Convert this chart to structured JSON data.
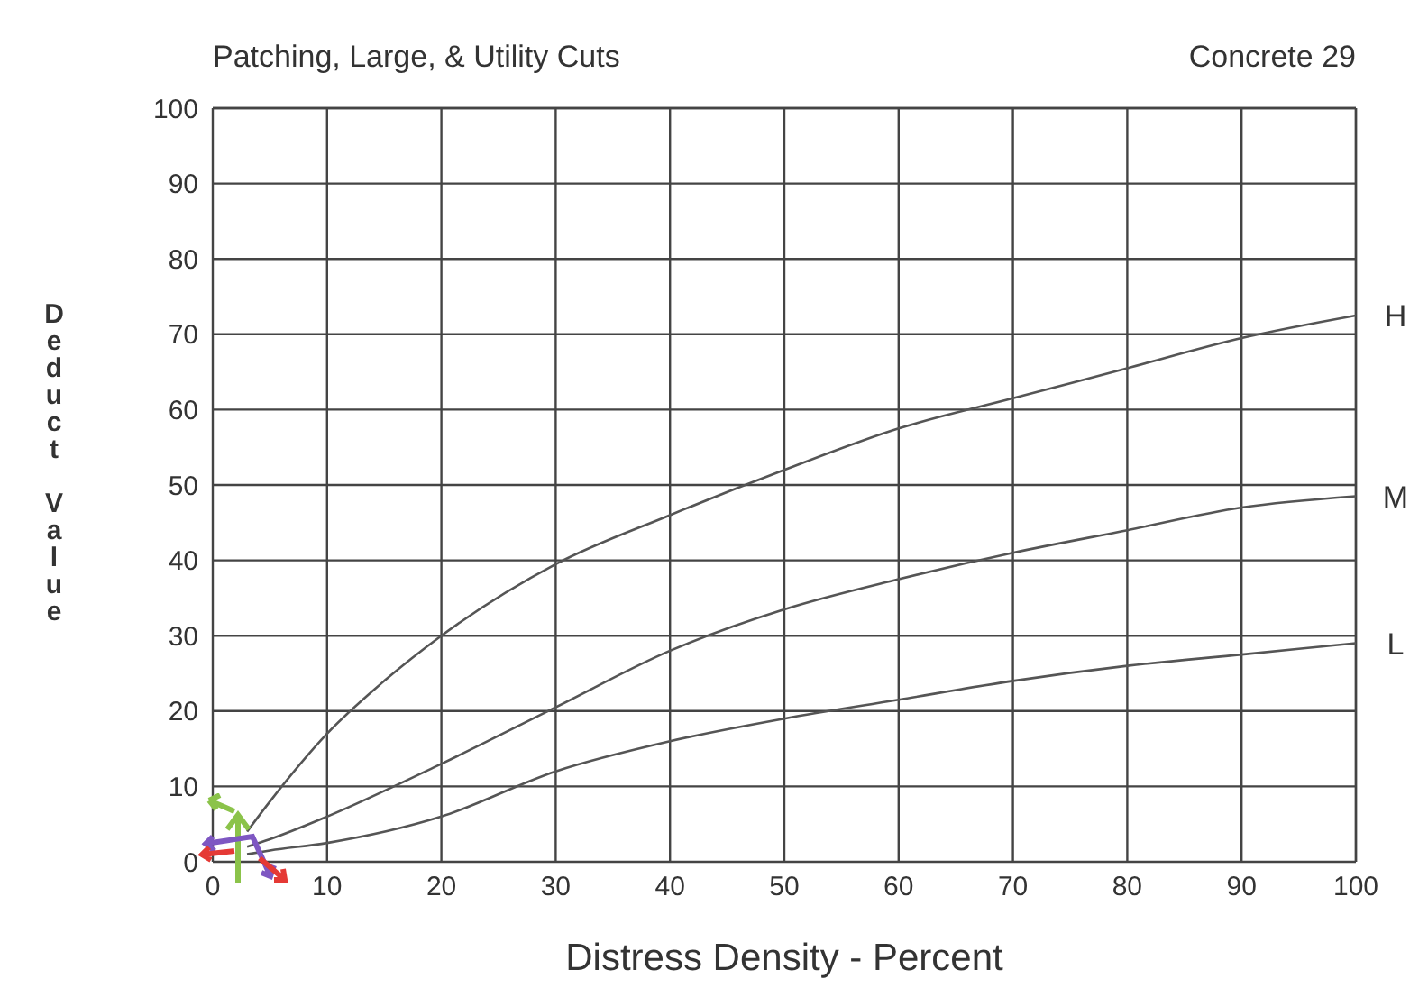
{
  "chart_data": {
    "type": "line",
    "title": "Patching, Large, & Utility Cuts",
    "subtitle": "Concrete 29",
    "xlabel": "Distress Density - Percent",
    "ylabel": "Deduct Value",
    "xlim": [
      0,
      100
    ],
    "xticks": [
      0,
      10,
      20,
      30,
      40,
      50,
      60,
      70,
      80,
      90,
      100
    ],
    "ylim": [
      0,
      100
    ],
    "yticks": [
      0,
      10,
      20,
      30,
      40,
      50,
      60,
      70,
      80,
      90,
      100
    ],
    "grid": true,
    "marker": "none",
    "line_style": "solid",
    "series": [
      {
        "name": "H",
        "color": "#555555",
        "x": [
          3,
          5,
          10,
          15,
          20,
          30,
          40,
          50,
          60,
          70,
          80,
          90,
          100
        ],
        "values": [
          4,
          8,
          17,
          24,
          30,
          39.5,
          46,
          52,
          57.5,
          61.5,
          65.5,
          69.5,
          72.5
        ]
      },
      {
        "name": "M",
        "color": "#555555",
        "x": [
          3,
          5,
          10,
          20,
          30,
          40,
          50,
          60,
          70,
          80,
          90,
          100
        ],
        "values": [
          2,
          3,
          6,
          13,
          20.5,
          28,
          33.5,
          37.5,
          41,
          44,
          47,
          48.5
        ]
      },
      {
        "name": "L",
        "color": "#555555",
        "x": [
          3,
          5,
          10,
          20,
          30,
          40,
          50,
          60,
          70,
          80,
          90,
          100
        ],
        "values": [
          1,
          1.5,
          2.5,
          6,
          12,
          16,
          19,
          21.5,
          24,
          26,
          27.5,
          29
        ]
      }
    ]
  }
}
